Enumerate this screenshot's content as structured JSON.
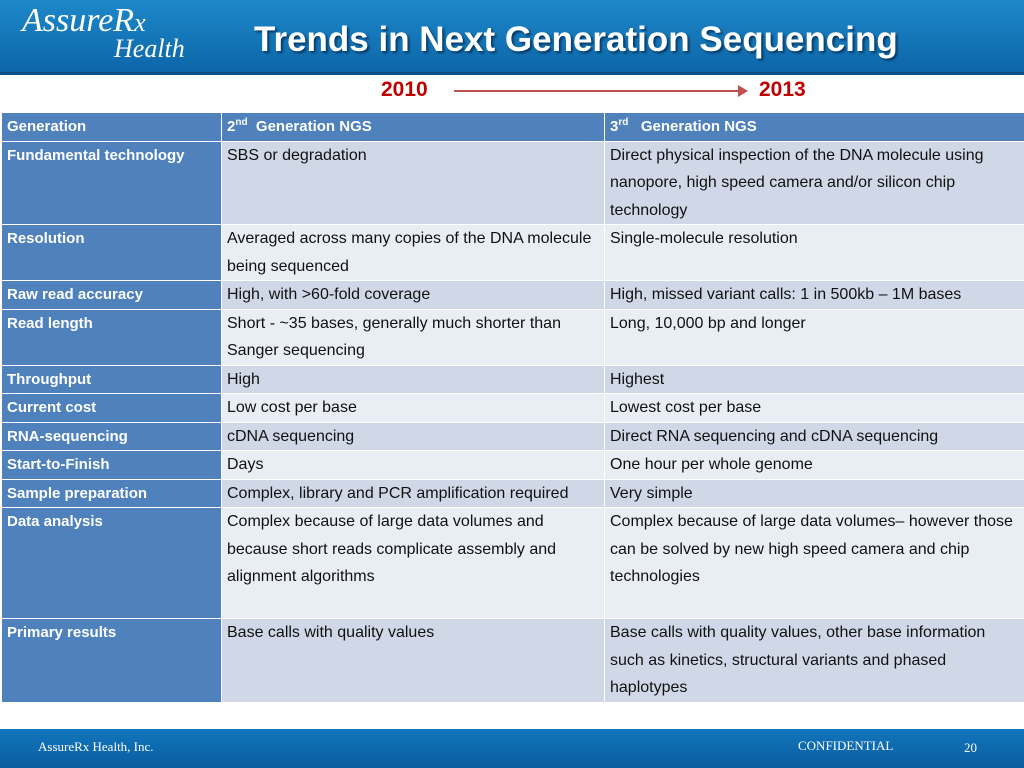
{
  "header": {
    "logo_line1": "AssureR",
    "logo_rx": "x",
    "logo_line2": "Health",
    "title": "Trends in Next Generation Sequencing"
  },
  "timeline": {
    "start": "2010",
    "end": "2013",
    "arrow_color": "#c00000"
  },
  "table": {
    "header": {
      "col1": "Generation",
      "col2_num": "2",
      "col2_sup": "nd",
      "col2_text": "Generation NGS",
      "col3_num": "3",
      "col3_sup": "rd",
      "col3_text": "Generation NGS"
    },
    "rows": [
      {
        "label": "Fundamental technology",
        "gen2": "SBS or degradation",
        "gen3": "Direct physical inspection of the DNA molecule using nanopore, high speed camera and/or silicon chip technology"
      },
      {
        "label": "Resolution",
        "gen2": "Averaged across many copies of the DNA molecule being sequenced",
        "gen3": "Single-molecule resolution"
      },
      {
        "label": "Raw read accuracy",
        "gen2": "High, with >60-fold coverage",
        "gen3": "High, missed variant calls: 1 in 500kb – 1M bases"
      },
      {
        "label": "Read length",
        "gen2": "Short - ~35 bases, generally much shorter than Sanger sequencing",
        "gen3": "Long, 10,000 bp and longer"
      },
      {
        "label": "Throughput",
        "gen2": "High",
        "gen3": "Highest"
      },
      {
        "label": "Current cost",
        "gen2": "Low cost per base",
        "gen3": "Lowest cost per base"
      },
      {
        "label": "RNA-sequencing",
        "gen2": "cDNA sequencing",
        "gen3": "Direct RNA sequencing and cDNA sequencing"
      },
      {
        "label": "Start-to-Finish",
        "gen2": "Days",
        "gen3": "One hour per whole genome"
      },
      {
        "label": "Sample preparation",
        "gen2": "Complex, library and PCR amplification required",
        "gen3": "Very simple"
      },
      {
        "label": "Data analysis",
        "gen2": "Complex because of large data volumes and because short reads complicate assembly and alignment algorithms",
        "gen3": "Complex because of large data volumes– however those can be solved by new high speed camera and chip technologies"
      },
      {
        "label": "Primary results",
        "gen2": "Base calls with quality values",
        "gen3": "Base calls with quality values, other base information such as kinetics,  structural variants and phased haplotypes"
      }
    ]
  },
  "footer": {
    "company": "AssureRx Health, Inc.",
    "confidential": "CONFIDENTIAL",
    "page": "20"
  },
  "colors": {
    "header_blue": "#1b7fc2",
    "table_header": "#4f81bd",
    "row_dark": "#d0d8e8",
    "row_light": "#e9edf4",
    "accent_red": "#c00000"
  }
}
